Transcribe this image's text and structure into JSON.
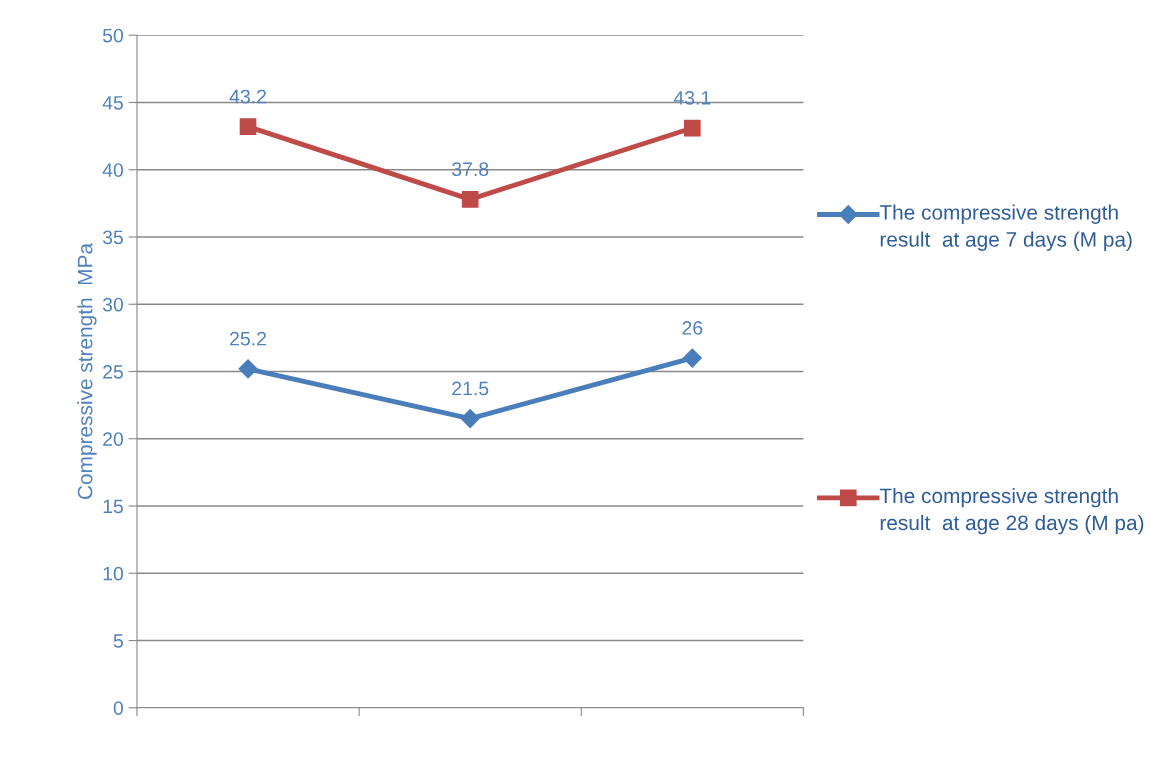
{
  "chart_data": {
    "type": "line",
    "ylabel": "Compressive strength  MPa",
    "categories": [
      null,
      null,
      null
    ],
    "series": [
      {
        "name": "The compressive strength result  at age 7 days (M pa)",
        "color": "#4a7ebb",
        "marker": "diamond",
        "values": [
          25.2,
          21.5,
          26
        ]
      },
      {
        "name": "The compressive strength result  at age 28 days (M pa)",
        "color": "#be4b48",
        "marker": "square",
        "values": [
          43.2,
          37.8,
          43.1
        ]
      }
    ],
    "ylim": [
      0,
      50
    ],
    "yticks": [
      0,
      5,
      10,
      15,
      20,
      25,
      30,
      35,
      40,
      45,
      50
    ],
    "grid": "y",
    "legend": "right",
    "data_labels": true,
    "line_style": "solid"
  }
}
